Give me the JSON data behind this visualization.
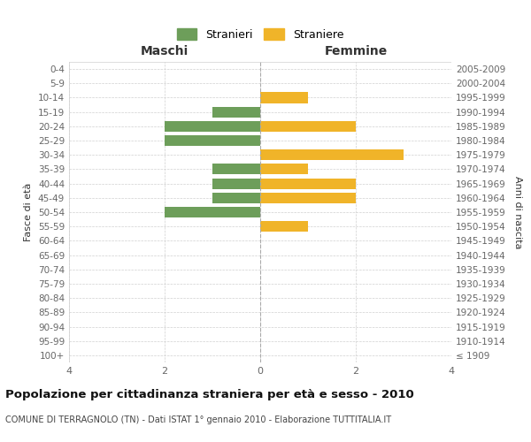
{
  "age_groups": [
    "100+",
    "95-99",
    "90-94",
    "85-89",
    "80-84",
    "75-79",
    "70-74",
    "65-69",
    "60-64",
    "55-59",
    "50-54",
    "45-49",
    "40-44",
    "35-39",
    "30-34",
    "25-29",
    "20-24",
    "15-19",
    "10-14",
    "5-9",
    "0-4"
  ],
  "birth_years": [
    "≤ 1909",
    "1910-1914",
    "1915-1919",
    "1920-1924",
    "1925-1929",
    "1930-1934",
    "1935-1939",
    "1940-1944",
    "1945-1949",
    "1950-1954",
    "1955-1959",
    "1960-1964",
    "1965-1969",
    "1970-1974",
    "1975-1979",
    "1980-1984",
    "1985-1989",
    "1990-1994",
    "1995-1999",
    "2000-2004",
    "2005-2009"
  ],
  "males": [
    0,
    0,
    0,
    0,
    0,
    0,
    0,
    0,
    0,
    0,
    2,
    1,
    1,
    1,
    0,
    2,
    2,
    1,
    0,
    0,
    0
  ],
  "females": [
    0,
    0,
    0,
    0,
    0,
    0,
    0,
    0,
    0,
    1,
    0,
    2,
    2,
    1,
    3,
    0,
    2,
    0,
    1,
    0,
    0
  ],
  "male_color": "#6d9e5a",
  "female_color": "#f0b429",
  "male_label": "Stranieri",
  "female_label": "Straniere",
  "title": "Popolazione per cittadinanza straniera per età e sesso - 2010",
  "subtitle": "COMUNE DI TERRAGNOLO (TN) - Dati ISTAT 1° gennaio 2010 - Elaborazione TUTTITALIA.IT",
  "xlabel_left": "Maschi",
  "xlabel_right": "Femmine",
  "ylabel_left": "Fasce di età",
  "ylabel_right": "Anni di nascita",
  "xlim": 4,
  "background_color": "#ffffff",
  "grid_color": "#d0d0d0",
  "center_line_color": "#aaaaaa"
}
